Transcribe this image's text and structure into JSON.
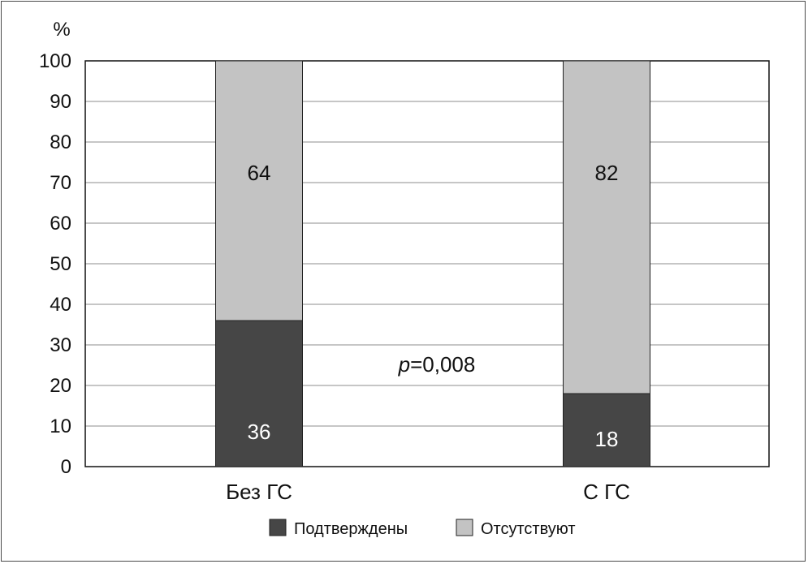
{
  "chart_data": {
    "type": "bar",
    "stacked": true,
    "ylabel": "%",
    "ylim": [
      0,
      100
    ],
    "yticks": [
      0,
      10,
      20,
      30,
      40,
      50,
      60,
      70,
      80,
      90,
      100
    ],
    "grid": true,
    "categories": [
      "Без ГС",
      "С ГС"
    ],
    "series": [
      {
        "name": "Подтверждены",
        "values": [
          36,
          18
        ],
        "color": "#464646",
        "label_color": "#ffffff"
      },
      {
        "name": "Отсутствуют",
        "values": [
          64,
          82
        ],
        "color": "#c3c3c3",
        "label_color": "#111111"
      }
    ],
    "annotation": {
      "italic": "p",
      "text": "=0,008"
    },
    "legend_position": "bottom"
  }
}
